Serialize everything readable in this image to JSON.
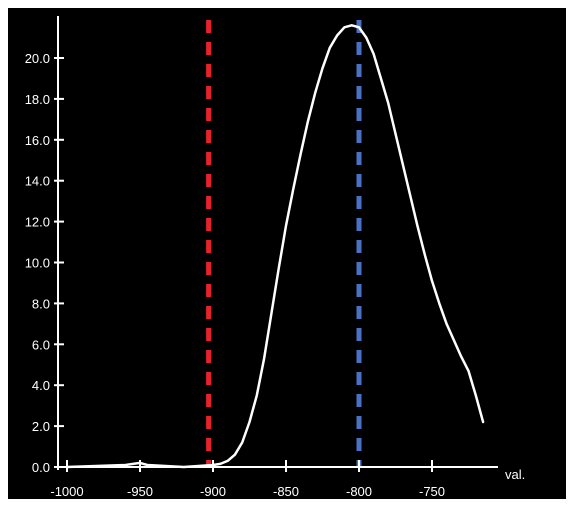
{
  "chart_data": {
    "type": "line",
    "title": "",
    "xlabel": "val.",
    "ylabel": "",
    "xlim": [
      -1000,
      -700
    ],
    "ylim": [
      0,
      21.5
    ],
    "x_ticks": [
      -1000,
      -950,
      -900,
      -850,
      -800,
      -750
    ],
    "x_tick_labels": [
      "-1000",
      "-950",
      "-900",
      "-850",
      "-800",
      "-750"
    ],
    "y_ticks": [
      0,
      2,
      4,
      6,
      8,
      10,
      12,
      14,
      16,
      18,
      20
    ],
    "y_tick_labels": [
      "0.0",
      "2.0",
      "4.0",
      "6.0",
      "8.0",
      "10.0",
      "12.0",
      "14.0",
      "16.0",
      "18.0",
      "20.0"
    ],
    "grid": false,
    "series": [
      {
        "color": "#ffffff",
        "x": [
          -1000,
          -960,
          -950,
          -945,
          -920,
          -900,
          -895,
          -890,
          -885,
          -880,
          -875,
          -870,
          -865,
          -860,
          -855,
          -850,
          -845,
          -840,
          -835,
          -830,
          -825,
          -820,
          -815,
          -810,
          -805,
          -800,
          -795,
          -790,
          -785,
          -780,
          -775,
          -770,
          -765,
          -760,
          -755,
          -750,
          -745,
          -740,
          -735,
          -730,
          -725,
          -720,
          -715
        ],
        "y": [
          0.0,
          0.1,
          0.2,
          0.1,
          0.0,
          0.1,
          0.15,
          0.3,
          0.6,
          1.2,
          2.2,
          3.5,
          5.3,
          7.5,
          9.7,
          11.8,
          13.6,
          15.3,
          16.9,
          18.3,
          19.5,
          20.5,
          21.1,
          21.5,
          21.6,
          21.5,
          21.0,
          20.2,
          19.0,
          17.8,
          16.3,
          14.8,
          13.3,
          11.8,
          10.4,
          9.1,
          8.0,
          7.0,
          6.2,
          5.4,
          4.7,
          3.5,
          2.2
        ]
      }
    ],
    "reference_lines": [
      {
        "x": -903,
        "color": "#e8212b",
        "style": "dashed"
      },
      {
        "x": -800,
        "color": "#4a72c4",
        "style": "dashed"
      }
    ]
  }
}
